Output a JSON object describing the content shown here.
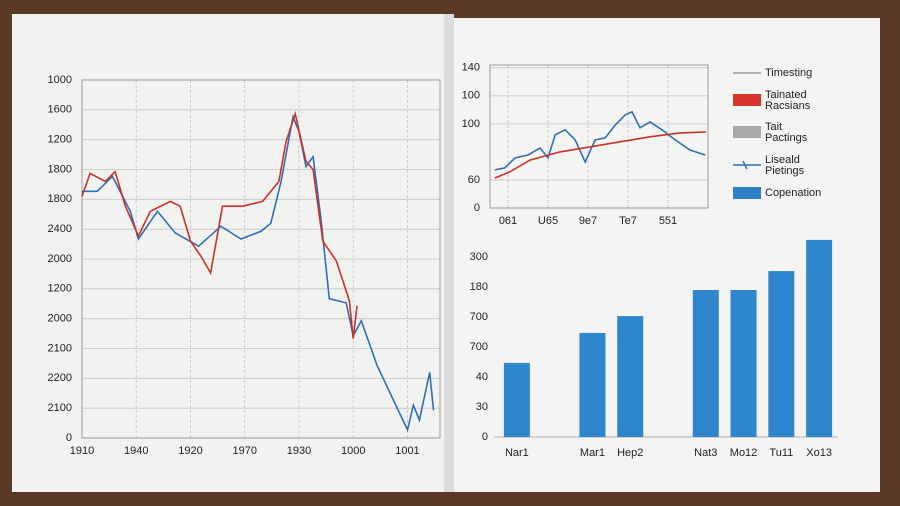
{
  "chart_data": [
    {
      "type": "line",
      "grid": true,
      "ylim": [
        0,
        12
      ],
      "yticks": [
        0,
        {
          "value": 1,
          "label": "2100"
        },
        {
          "value": 2,
          "label": "2200"
        },
        {
          "value": 3,
          "label": "2100"
        },
        {
          "value": 4,
          "label": "2000"
        },
        {
          "value": 5,
          "label": "1200"
        },
        {
          "value": 6,
          "label": "2000"
        },
        {
          "value": 7,
          "label": "2400"
        },
        {
          "value": 8,
          "label": "1800"
        },
        {
          "value": 9,
          "label": "1800"
        },
        {
          "value": 10,
          "label": "1200"
        },
        {
          "value": 11,
          "label": "1600"
        },
        {
          "value": 12,
          "label": "1000"
        }
      ],
      "xlim": [
        0,
        6.6
      ],
      "xticks": [
        {
          "value": 0,
          "label": "1910"
        },
        {
          "value": 1,
          "label": "1940"
        },
        {
          "value": 2,
          "label": "1920"
        },
        {
          "value": 3,
          "label": "1970"
        },
        {
          "value": 4,
          "label": "1930"
        },
        {
          "value": 5,
          "label": "1000"
        },
        {
          "value": 6,
          "label": "1001"
        }
      ],
      "series": [
        {
          "color": "#2f6fb3",
          "x": [
            0,
            0.28,
            0.56,
            0.89,
            1.04,
            1.39,
            1.72,
            2.15,
            2.56,
            2.93,
            3.3,
            3.48,
            3.67,
            3.89,
            4.0,
            4.13,
            4.26,
            4.41,
            4.56,
            4.87,
            5.0,
            5.15,
            5.44,
            5.74,
            6.0,
            6.11,
            6.22,
            6.41,
            6.48
          ],
          "values": [
            8.27,
            8.27,
            8.77,
            7.6,
            6.67,
            7.6,
            6.87,
            6.43,
            7.1,
            6.67,
            6.93,
            7.2,
            8.6,
            10.77,
            10.27,
            9.1,
            9.43,
            7.27,
            4.67,
            4.53,
            3.43,
            3.93,
            2.43,
            1.27,
            0.27,
            1.1,
            0.6,
            2.2,
            0.93
          ]
        },
        {
          "color": "#c8322a",
          "x": [
            0,
            0.15,
            0.43,
            0.61,
            0.8,
            1.04,
            1.26,
            1.63,
            1.81,
            2.0,
            2.19,
            2.37,
            2.59,
            2.96,
            3.33,
            3.63,
            3.76,
            3.93,
            4.13,
            4.26,
            4.44,
            4.69,
            4.93,
            5.0,
            5.07
          ],
          "values": [
            8.1,
            8.87,
            8.6,
            8.93,
            7.77,
            6.77,
            7.6,
            7.93,
            7.77,
            6.6,
            6.1,
            5.53,
            7.77,
            7.77,
            7.93,
            8.6,
            9.93,
            10.87,
            9.27,
            9.0,
            6.6,
            5.93,
            4.6,
            3.33,
            4.43
          ]
        }
      ]
    },
    {
      "type": "line",
      "grid": true,
      "ylim": [
        0,
        5.1
      ],
      "yticks": [
        0,
        {
          "value": 1,
          "label": "60"
        },
        {
          "value": 3,
          "label": "100"
        },
        {
          "value": 4,
          "label": "100"
        },
        {
          "value": 5,
          "label": "140"
        }
      ],
      "xlim": [
        -0.45,
        5
      ],
      "xticks": [
        {
          "value": 0,
          "label": "061"
        },
        {
          "value": 1,
          "label": "U65"
        },
        {
          "value": 2,
          "label": "9e7"
        },
        {
          "value": 3,
          "label": "Te7"
        },
        {
          "value": 4,
          "label": "551"
        }
      ],
      "series": [
        {
          "color": "#2f6fb3",
          "x": [
            -0.33,
            -0.08,
            0.18,
            0.5,
            0.8,
            1.0,
            1.18,
            1.43,
            1.68,
            1.93,
            2.18,
            2.43,
            2.68,
            2.93,
            3.1,
            3.3,
            3.55,
            3.85,
            4.18,
            4.55,
            4.93
          ],
          "values": [
            1.36,
            1.43,
            1.79,
            1.89,
            2.14,
            1.79,
            2.61,
            2.79,
            2.43,
            1.64,
            2.43,
            2.5,
            2.96,
            3.32,
            3.43,
            2.86,
            3.07,
            2.79,
            2.43,
            2.07,
            1.89
          ]
        },
        {
          "color": "#c8322a",
          "x": [
            -0.33,
            0.05,
            0.55,
            1.3,
            2.05,
            2.8,
            3.55,
            4.3,
            4.95
          ],
          "values": [
            1.07,
            1.29,
            1.71,
            2.0,
            2.18,
            2.36,
            2.54,
            2.68,
            2.71
          ]
        }
      ],
      "legend": [
        {
          "label": "Timesting",
          "color": "#9a9a9a",
          "shape": "line"
        },
        {
          "label": "Tainated Racsians",
          "color": "#d9342b",
          "shape": "box"
        },
        {
          "label": "Tait Pactings",
          "color": "#a8a8a8",
          "shape": "box"
        },
        {
          "label": "Liseald Pietings",
          "color": "#2f6fb3",
          "shape": "marker-line"
        },
        {
          "label": "Copenation",
          "color": "#2f80c8",
          "shape": "box"
        }
      ]
    },
    {
      "type": "bar",
      "color": "#2f86cc",
      "ylim": [
        0,
        6.7
      ],
      "yticks": [
        0,
        {
          "value": 1,
          "label": "30"
        },
        {
          "value": 2,
          "label": "40"
        },
        {
          "value": 3,
          "label": "700"
        },
        {
          "value": 4,
          "label": "700"
        },
        {
          "value": 5,
          "label": "180"
        },
        {
          "value": 6,
          "label": "300"
        }
      ],
      "categories": [
        "Nar1",
        null,
        "Mar1",
        "Hep2",
        null,
        "Nat3",
        "Mo12",
        "Tu11",
        "Xo13"
      ],
      "values": [
        2.47,
        null,
        3.47,
        4.03,
        null,
        4.9,
        4.9,
        5.53,
        6.57
      ]
    }
  ]
}
